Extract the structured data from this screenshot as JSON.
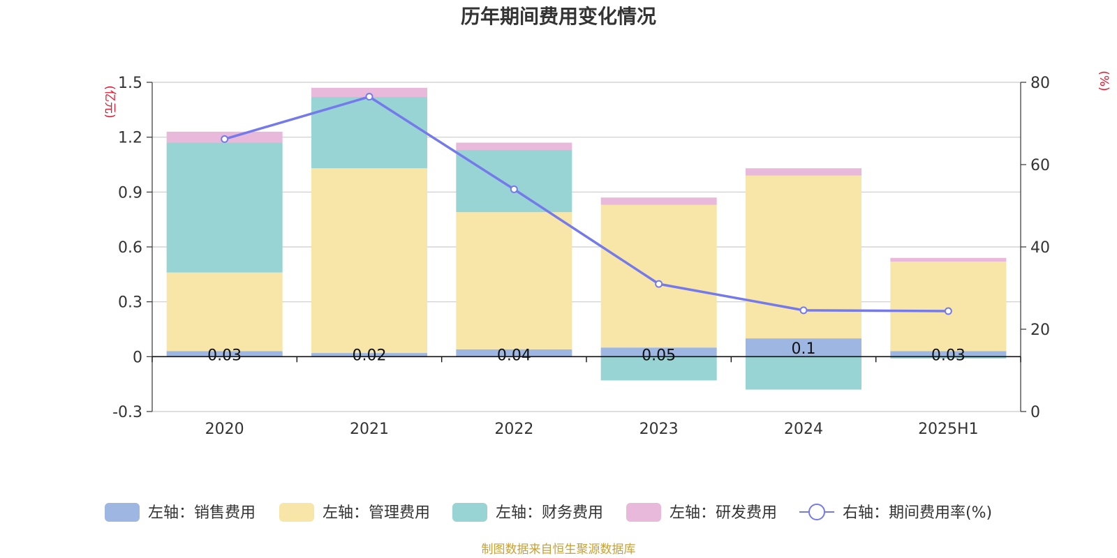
{
  "chart_data": {
    "type": "bar",
    "title": "历年期间费用变化情况",
    "categories": [
      "2020",
      "2021",
      "2022",
      "2023",
      "2024",
      "2025H1"
    ],
    "left_axis": {
      "unit_label": "(亿元)",
      "ylim": [
        -0.3,
        1.5
      ],
      "ticks": [
        "-0.3",
        "0",
        "0.3",
        "0.6",
        "0.9",
        "1.2",
        "1.5"
      ]
    },
    "right_axis": {
      "unit_label": "(%)",
      "ylim": [
        0,
        80
      ],
      "ticks": [
        "0",
        "20",
        "40",
        "60",
        "80"
      ]
    },
    "stacked": true,
    "grid": true,
    "legend_position": "bottom",
    "series": [
      {
        "name": "左轴：销售费用",
        "type": "bar",
        "axis": "left",
        "color": "#9db6e2",
        "values": [
          0.03,
          0.02,
          0.04,
          0.05,
          0.1,
          0.03
        ],
        "data_labels": [
          "0.03",
          "0.02",
          "0.04",
          "0.05",
          "0.1",
          "0.03"
        ]
      },
      {
        "name": "左轴：管理费用",
        "type": "bar",
        "axis": "left",
        "color": "#f8e6a9",
        "values": [
          0.43,
          1.01,
          0.75,
          0.78,
          0.89,
          0.49
        ]
      },
      {
        "name": "左轴：财务费用",
        "type": "bar",
        "axis": "left",
        "color": "#98d4d3",
        "values": [
          0.71,
          0.39,
          0.34,
          -0.13,
          -0.18,
          -0.01
        ]
      },
      {
        "name": "左轴：研发费用",
        "type": "bar",
        "axis": "left",
        "color": "#e8b9da",
        "values": [
          0.06,
          0.05,
          0.04,
          0.04,
          0.04,
          0.02
        ]
      },
      {
        "name": "右轴：期间费用率(%)",
        "type": "line",
        "axis": "right",
        "color": "#7479eb",
        "values": [
          66.2,
          76.5,
          54.0,
          31.0,
          24.6,
          24.4
        ]
      }
    ],
    "source": "制图数据来自恒生聚源数据库"
  },
  "colors": {
    "axis_unit": "#e8142c",
    "source": "#c8a034",
    "grid": "#cccccc",
    "axis": "#333333"
  }
}
